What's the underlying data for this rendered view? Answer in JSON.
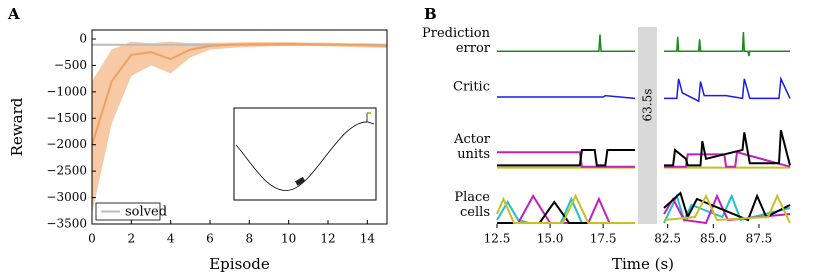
{
  "chart_data": [
    {
      "type": "line",
      "panel": "A",
      "xlabel": "Episode",
      "ylabel": "Reward",
      "xlim": [
        0,
        15
      ],
      "ylim": [
        -3500,
        170
      ],
      "xticks": [
        0,
        2,
        4,
        6,
        8,
        10,
        12,
        14
      ],
      "yticks": [
        0,
        {
          "value": -500,
          "label": "−500"
        },
        {
          "value": -1000,
          "label": "−1000"
        },
        {
          "value": -1500,
          "label": "−1500"
        },
        {
          "value": -2000,
          "label": "−2000"
        },
        {
          "value": -2500,
          "label": "−2500"
        },
        {
          "value": -3000,
          "label": "−3000"
        },
        {
          "value": -3500,
          "label": "−3500"
        }
      ],
      "x": [
        0,
        1,
        2,
        3,
        4,
        5,
        6,
        7,
        8,
        9,
        10,
        11,
        12,
        13,
        14,
        15
      ],
      "values": [
        -2000,
        -800,
        -300,
        -250,
        -380,
        -200,
        -130,
        -110,
        -100,
        -100,
        -95,
        -100,
        -105,
        -110,
        -120,
        -130
      ],
      "lower": [
        -3300,
        -1600,
        -700,
        -500,
        -650,
        -350,
        -200,
        -170,
        -150,
        -140,
        -130,
        -130,
        -140,
        -150,
        -160,
        -170
      ],
      "upper": [
        -800,
        -200,
        -50,
        -80,
        -50,
        -80,
        -70,
        -70,
        -60,
        -60,
        -60,
        -70,
        -70,
        -80,
        -80,
        -90
      ],
      "color": "#f0a060",
      "band_color": "#f7c9a4",
      "hline": {
        "value": -110,
        "name": "solved",
        "color": "#bbbbbb"
      },
      "legend": "lower left"
    },
    {
      "type": "traces",
      "panel": "B",
      "xlabel": "Time (s)",
      "break_label": "63.5s",
      "segments": [
        {
          "xlim": [
            12.5,
            19.0
          ],
          "xticks": [
            12.5,
            {
              "value": 15,
              "label": "15.0"
            },
            17.5
          ]
        },
        {
          "xlim": [
            82.3,
            89.2
          ],
          "xticks": [
            82.5,
            {
              "value": 85,
              "label": "85.0"
            },
            87.5
          ]
        }
      ],
      "rows": [
        {
          "label": [
            "Prediction",
            "error"
          ],
          "ylim": [
            0,
            1
          ],
          "series": [
            {
              "color": "#1a8a1a",
              "x": [
                12.5,
                17.3,
                17.35,
                17.4,
                19.0,
                null,
                82.3,
                83.0,
                83.05,
                83.1,
                84.2,
                84.25,
                84.3,
                86.6,
                86.65,
                86.7,
                86.9,
                86.95,
                87.0,
                89.2
              ],
              "values": [
                0.2,
                0.2,
                0.9,
                0.2,
                0.2,
                null,
                0.2,
                0.2,
                0.8,
                0.2,
                0.2,
                0.7,
                0.2,
                0.2,
                1.0,
                0.2,
                0.2,
                0.0,
                0.2,
                0.2
              ]
            }
          ]
        },
        {
          "label": [
            "Critic"
          ],
          "ylim": [
            0,
            1
          ],
          "series": [
            {
              "color": "#1a1aee",
              "x": [
                12.5,
                17.5,
                17.6,
                19.0,
                null,
                82.3,
                83.0,
                83.1,
                83.3,
                84.2,
                84.3,
                84.5,
                85.7,
                86.6,
                86.7,
                87.0,
                88.6,
                88.7,
                89.2
              ],
              "values": [
                0.25,
                0.25,
                0.3,
                0.2,
                null,
                0.2,
                0.2,
                0.9,
                0.4,
                0.1,
                0.8,
                0.3,
                0.3,
                0.2,
                0.9,
                0.2,
                0.2,
                0.9,
                0.2
              ]
            }
          ]
        },
        {
          "label": [
            "Actor",
            "units"
          ],
          "ylim": [
            0,
            1
          ],
          "series": [
            {
              "color": "#c8c020",
              "x": [
                12.5,
                19.0,
                null,
                82.3,
                89.2
              ],
              "values": [
                0.1,
                0.1,
                null,
                0.1,
                0.1
              ]
            },
            {
              "color": "#c020c0",
              "x": [
                12.5,
                16.4,
                16.5,
                19.0,
                null,
                82.3,
                83.5,
                83.6,
                85.6,
                85.7,
                86.2,
                86.3,
                89.2
              ],
              "values": [
                0.45,
                0.45,
                0.12,
                0.12,
                null,
                0.12,
                0.12,
                0.4,
                0.4,
                0.12,
                0.12,
                0.45,
                0.12
              ]
            },
            {
              "color": "#000000",
              "x": [
                12.5,
                16.4,
                16.5,
                17.1,
                17.2,
                17.6,
                17.7,
                19.0,
                null,
                82.3,
                82.8,
                82.9,
                83.5,
                83.6,
                84.3,
                84.4,
                84.6,
                86.6,
                86.7,
                87.0,
                88.6,
                88.7,
                89.2
              ],
              "values": [
                0.15,
                0.15,
                0.5,
                0.5,
                0.15,
                0.15,
                0.5,
                0.5,
                null,
                0.15,
                0.15,
                0.5,
                0.3,
                0.15,
                0.15,
                0.7,
                0.3,
                0.5,
                0.9,
                0.2,
                0.2,
                0.95,
                0.15
              ]
            }
          ]
        },
        {
          "label": [
            "Place",
            "cells"
          ],
          "ylim": [
            0,
            1
          ],
          "series": [
            {
              "color": "#20c0d0",
              "x": [
                12.5,
                13.0,
                13.5,
                14.0,
                15.5,
                16.0,
                16.5,
                19.0,
                null,
                82.3,
                83.0,
                83.4,
                83.8,
                85.5,
                86.0,
                86.5,
                89.2
              ],
              "values": [
                0.1,
                0.7,
                0.1,
                0.0,
                0.0,
                0.8,
                0.0,
                0.0,
                null,
                0.0,
                0.9,
                0.1,
                0.6,
                0.2,
                0.9,
                0.1,
                0.5
              ]
            },
            {
              "color": "#c020c0",
              "x": [
                12.5,
                13.5,
                14.2,
                15.0,
                16.8,
                17.3,
                17.8,
                19.0,
                null,
                82.3,
                82.8,
                83.4,
                84.6,
                85.2,
                85.8,
                89.2
              ],
              "values": [
                0.0,
                0.0,
                0.9,
                0.0,
                0.0,
                0.8,
                0.0,
                0.0,
                null,
                0.3,
                0.8,
                0.1,
                0.0,
                0.9,
                0.1,
                0.3
              ]
            },
            {
              "color": "#000000",
              "x": [
                12.5,
                14.5,
                15.2,
                15.9,
                17.0,
                19.0,
                null,
                82.3,
                83.2,
                83.6,
                84.1,
                86.9,
                87.4,
                87.9,
                89.2
              ],
              "values": [
                0.0,
                0.0,
                0.7,
                0.0,
                0.0,
                0.0,
                null,
                0.5,
                1.0,
                0.2,
                0.8,
                0.1,
                0.9,
                0.2,
                0.6
              ]
            },
            {
              "color": "#c8c020",
              "x": [
                12.5,
                12.8,
                13.3,
                15.6,
                16.2,
                16.8,
                19.0,
                null,
                82.3,
                84.0,
                84.6,
                85.2,
                88.0,
                88.5,
                89.2
              ],
              "values": [
                0.3,
                0.8,
                0.0,
                0.0,
                0.9,
                0.0,
                0.0,
                null,
                0.1,
                0.2,
                0.9,
                0.1,
                0.2,
                0.9,
                0.0
              ]
            }
          ]
        }
      ]
    }
  ]
}
